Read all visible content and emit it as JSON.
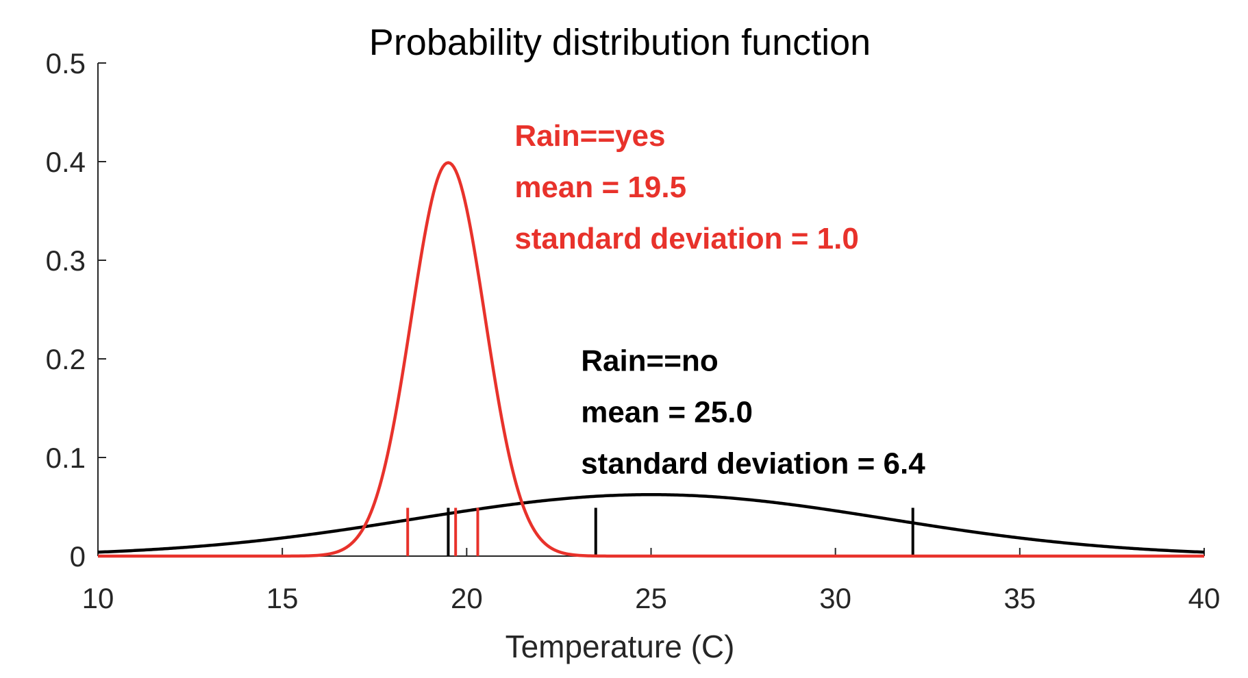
{
  "chart_data": {
    "type": "line",
    "title": "Probability distribution function",
    "xlabel": "Temperature (C)",
    "ylabel": "",
    "xlim": [
      10,
      40
    ],
    "ylim": [
      0,
      0.5
    ],
    "x_ticks": [
      10,
      15,
      20,
      25,
      30,
      35,
      40
    ],
    "x_tick_labels": [
      "10",
      "15",
      "20",
      "25",
      "30",
      "35",
      "40"
    ],
    "y_ticks": [
      0,
      0.1,
      0.2,
      0.3,
      0.4,
      0.5
    ],
    "y_tick_labels": [
      "0",
      "0.1",
      "0.2",
      "0.3",
      "0.4",
      "0.5"
    ],
    "grid": false,
    "series": [
      {
        "color": "#e8322b",
        "distribution": "normal",
        "mean": 19.5,
        "std": 1.0,
        "annotation": [
          "Rain==yes",
          "mean = 19.5",
          "standard deviation = 1.0"
        ],
        "observations": [
          18.4,
          19.7,
          20.3
        ]
      },
      {
        "color": "#000000",
        "distribution": "normal",
        "mean": 25.0,
        "std": 6.4,
        "annotation": [
          "Rain==no",
          "mean = 25.0",
          "standard deviation = 6.4"
        ],
        "observations": [
          19.5,
          23.5,
          32.1
        ]
      }
    ]
  }
}
